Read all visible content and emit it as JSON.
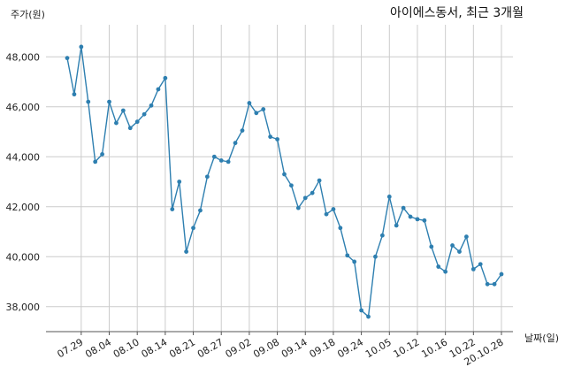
{
  "chart_data": {
    "type": "line",
    "title": "아이에스동서, 최근 3개월",
    "xlabel": "날짜(일)",
    "ylabel": "주가(원)",
    "ylim": [
      37000,
      49000
    ],
    "yticks": [
      38000,
      40000,
      42000,
      44000,
      46000,
      48000
    ],
    "ytick_labels": [
      "38,000",
      "40,000",
      "42,000",
      "44,000",
      "46,000",
      "48,000"
    ],
    "xtick_labels": [
      "07.29",
      "08.04",
      "08.10",
      "08.14",
      "08.21",
      "08.27",
      "09.02",
      "09.08",
      "09.14",
      "09.18",
      "09.24",
      "10.05",
      "10.12",
      "10.16",
      "10.22",
      "20.10.28"
    ],
    "xtick_index": [
      2,
      6,
      10,
      14,
      18,
      22,
      26,
      30,
      34,
      38,
      42,
      46,
      50,
      54,
      58,
      62
    ],
    "grid": true,
    "color": "#2e7fb0",
    "series": [
      {
        "values": [
          47950,
          46500,
          48400,
          46200,
          43800,
          44100,
          46200,
          45350,
          45850,
          45150,
          45400,
          45700,
          46050,
          46700,
          47150,
          41900,
          43000,
          40200,
          41150,
          41850,
          43200,
          44000,
          43850,
          43800,
          44550,
          45050,
          46150,
          45750,
          45900,
          44800,
          44700,
          43300,
          42850,
          41950,
          42350,
          42550,
          43050,
          41700,
          41900,
          41150,
          40050,
          39800,
          37850,
          37600,
          40000,
          40850,
          42400,
          41250,
          41950,
          41600,
          41500,
          41450,
          40400,
          39600,
          39400,
          40450,
          40200,
          40800,
          39500,
          39700,
          38900,
          38900,
          39300
        ]
      }
    ]
  }
}
